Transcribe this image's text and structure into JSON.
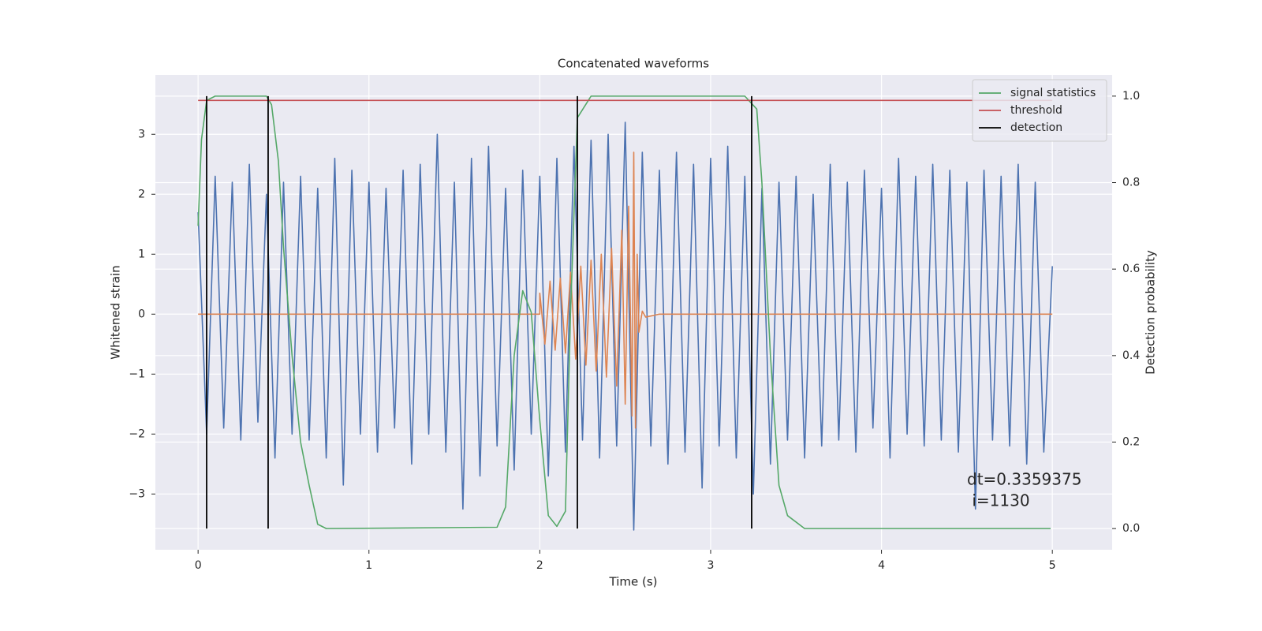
{
  "chart_data": {
    "type": "line",
    "title": "Concatenated waveforms",
    "xlabel": "Time (s)",
    "ylabel": "Whitened strain",
    "y2label": "Detection probability",
    "xlim": [
      -0.25,
      5.35
    ],
    "ylim": [
      -3.93,
      3.99
    ],
    "y2lim": [
      -0.049,
      1.049
    ],
    "xticks": [
      0,
      1,
      2,
      3,
      4,
      5
    ],
    "yticks": [
      {
        "value": -3,
        "label": "−3"
      },
      {
        "value": -2,
        "label": "−2"
      },
      {
        "value": -1,
        "label": "−1"
      },
      0,
      1,
      2,
      3
    ],
    "y2ticks": [
      {
        "value": 0,
        "label": "0.0"
      },
      0.2,
      0.4,
      0.6,
      0.8,
      {
        "value": 1,
        "label": "1.0"
      }
    ],
    "grid": true,
    "legend": "upper right",
    "annotation": [
      "dt=0.3359375",
      " i=1130"
    ],
    "series": [
      {
        "color": "#4c72b0",
        "x": [
          0,
          0.05,
          0.1,
          0.15,
          0.2,
          0.25,
          0.3,
          0.35,
          0.4,
          0.45,
          0.5,
          0.55,
          0.6,
          0.65,
          0.7,
          0.75,
          0.8,
          0.85,
          0.9,
          0.95,
          1,
          1.05,
          1.1,
          1.15,
          1.2,
          1.25,
          1.3,
          1.35,
          1.4,
          1.45,
          1.5,
          1.55,
          1.6,
          1.65,
          1.7,
          1.75,
          1.8,
          1.85,
          1.9,
          1.95,
          2,
          2.05,
          2.1,
          2.15,
          2.2,
          2.25,
          2.3,
          2.35,
          2.4,
          2.45,
          2.5,
          2.55,
          2.6,
          2.65,
          2.7,
          2.75,
          2.8,
          2.85,
          2.9,
          2.95,
          3,
          3.05,
          3.1,
          3.15,
          3.2,
          3.25,
          3.3,
          3.35,
          3.4,
          3.45,
          3.5,
          3.55,
          3.6,
          3.65,
          3.7,
          3.75,
          3.8,
          3.85,
          3.9,
          3.95,
          4,
          4.05,
          4.1,
          4.15,
          4.2,
          4.25,
          4.3,
          4.35,
          4.4,
          4.45,
          4.5,
          4.55,
          4.6,
          4.65,
          4.7,
          4.75,
          4.8,
          4.85,
          4.9,
          4.95,
          5
        ],
        "values": [
          1.7,
          -2.0,
          2.3,
          -1.9,
          2.2,
          -2.1,
          2.5,
          -1.8,
          2.0,
          -2.4,
          2.2,
          -2.0,
          2.3,
          -2.1,
          2.1,
          -2.4,
          2.6,
          -2.85,
          2.4,
          -2.0,
          2.2,
          -2.3,
          2.1,
          -1.9,
          2.4,
          -2.5,
          2.5,
          -2.0,
          3.0,
          -2.3,
          2.2,
          -3.25,
          2.6,
          -2.7,
          2.8,
          -2.2,
          2.1,
          -2.6,
          2.4,
          -2.0,
          2.3,
          -2.7,
          2.6,
          -2.3,
          2.8,
          -2.1,
          2.9,
          -2.4,
          3.0,
          -2.2,
          3.2,
          -3.6,
          2.7,
          -2.2,
          2.4,
          -2.5,
          2.7,
          -2.3,
          2.5,
          -2.9,
          2.6,
          -2.2,
          2.8,
          -2.4,
          2.3,
          -3.0,
          2.1,
          -2.5,
          2.2,
          -2.1,
          2.3,
          -2.4,
          2.0,
          -2.2,
          2.5,
          -2.1,
          2.2,
          -2.3,
          2.4,
          -1.9,
          2.1,
          -2.4,
          2.6,
          -2.0,
          2.3,
          -2.2,
          2.5,
          -2.1,
          2.4,
          -2.3,
          2.2,
          -3.25,
          2.4,
          -2.1,
          2.3,
          -2.2,
          2.5,
          -2.5,
          2.2,
          -2.3,
          0.8
        ]
      },
      {
        "color": "#dd8452",
        "x": [
          0,
          2.0,
          2.0,
          2.03,
          2.06,
          2.09,
          2.12,
          2.15,
          2.18,
          2.21,
          2.24,
          2.27,
          2.3,
          2.33,
          2.36,
          2.39,
          2.42,
          2.45,
          2.48,
          2.5,
          2.52,
          2.54,
          2.55,
          2.56,
          2.57,
          2.58,
          2.6,
          2.62,
          2.7,
          5.0
        ],
        "values": [
          0,
          0,
          0.35,
          -0.5,
          0.55,
          -0.6,
          0.6,
          -0.65,
          0.7,
          -0.75,
          0.8,
          -0.85,
          0.9,
          -0.95,
          1.0,
          -1.05,
          1.1,
          -1.2,
          1.4,
          -1.5,
          1.8,
          -1.7,
          2.7,
          -1.9,
          1.0,
          -0.3,
          0.05,
          -0.05,
          0,
          0
        ]
      },
      {
        "name": "signal statistics",
        "color": "#55a868",
        "axis": "y2",
        "x": [
          0,
          0.02,
          0.05,
          0.1,
          0.4,
          0.43,
          0.47,
          0.5,
          0.55,
          0.6,
          0.65,
          0.7,
          0.75,
          1.75,
          1.8,
          1.85,
          1.9,
          1.95,
          2.0,
          2.05,
          2.1,
          2.15,
          2.18,
          2.22,
          2.3,
          3.2,
          3.27,
          3.3,
          3.35,
          3.4,
          3.45,
          3.55,
          4.99
        ],
        "values": [
          0.7,
          0.9,
          0.99,
          1.0,
          1.0,
          0.98,
          0.85,
          0.65,
          0.4,
          0.2,
          0.1,
          0.01,
          0,
          0.003,
          0.05,
          0.4,
          0.55,
          0.5,
          0.25,
          0.03,
          0.005,
          0.04,
          0.5,
          0.95,
          1.0,
          1.0,
          0.97,
          0.8,
          0.4,
          0.1,
          0.03,
          0,
          0
        ]
      },
      {
        "name": "threshold",
        "color": "#c44e52",
        "axis": "y2",
        "x": [
          0,
          5
        ],
        "values": [
          0.99,
          0.99
        ]
      },
      {
        "name": "detection",
        "type": "vlines",
        "color": "#000000",
        "axis": "y2",
        "x": [
          0.05,
          0.41,
          2.22,
          3.24
        ],
        "span": [
          0,
          1
        ]
      }
    ]
  }
}
